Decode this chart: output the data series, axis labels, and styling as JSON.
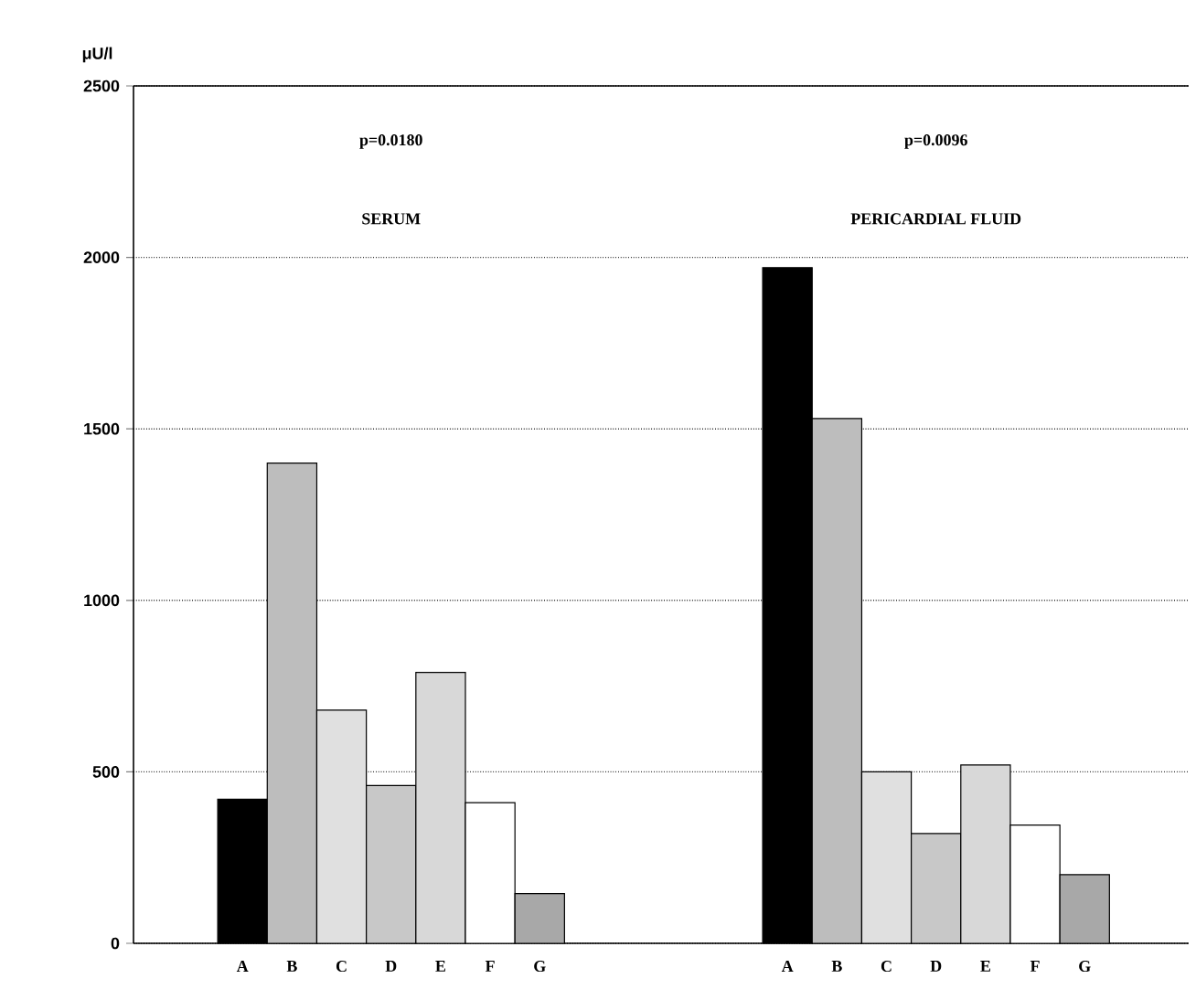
{
  "chart_data": {
    "type": "bar",
    "ylabel": "μU/l",
    "categories": [
      "A",
      "B",
      "C",
      "D",
      "E",
      "F",
      "G",
      null,
      null,
      null,
      null,
      "A",
      "B",
      "C",
      "D",
      "E",
      "F",
      "G"
    ],
    "values": [
      420,
      1400,
      680,
      460,
      790,
      410,
      145,
      null,
      null,
      null,
      null,
      1970,
      1530,
      500,
      320,
      520,
      345,
      200
    ],
    "colors": [
      "#000000",
      "#bdbdbd",
      "#e0e0e0",
      "#c8c8c8",
      "#d8d8d8",
      "#ffffff",
      "#a8a8a8",
      null,
      null,
      null,
      null,
      "#000000",
      "#bdbdbd",
      "#e0e0e0",
      "#c8c8c8",
      "#d8d8d8",
      "#ffffff",
      "#a8a8a8"
    ],
    "ylim": [
      0,
      2500
    ],
    "yticks": [
      0,
      500,
      1000,
      1500,
      2000,
      2500
    ],
    "grid": "y",
    "annotations": [
      "p=0.0180",
      "SERUM",
      "p=0.0096",
      "PERICARDIAL FLUID"
    ]
  }
}
